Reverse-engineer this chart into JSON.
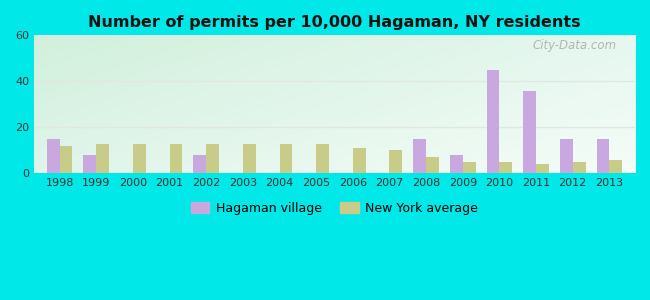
{
  "title": "Number of permits per 10,000 Hagaman, NY residents",
  "years": [
    1998,
    1999,
    2000,
    2001,
    2002,
    2003,
    2004,
    2005,
    2006,
    2007,
    2008,
    2009,
    2010,
    2011,
    2012,
    2013
  ],
  "hagaman": [
    15,
    8,
    0,
    0,
    8,
    0,
    0,
    0,
    0,
    0,
    15,
    8,
    45,
    36,
    15,
    15
  ],
  "ny_avg": [
    12,
    13,
    13,
    13,
    13,
    13,
    13,
    13,
    11,
    10,
    7,
    5,
    5,
    4,
    5,
    6
  ],
  "hagaman_color": "#c9a8e0",
  "ny_avg_color": "#c8cc88",
  "ylim": [
    0,
    60
  ],
  "yticks": [
    0,
    20,
    40,
    60
  ],
  "bar_width": 0.35,
  "legend_hagaman": "Hagaman village",
  "legend_ny": "New York average",
  "fig_bg": "#00e8e8",
  "grid_color": "#e0e8e0",
  "watermark": "City-Data.com"
}
